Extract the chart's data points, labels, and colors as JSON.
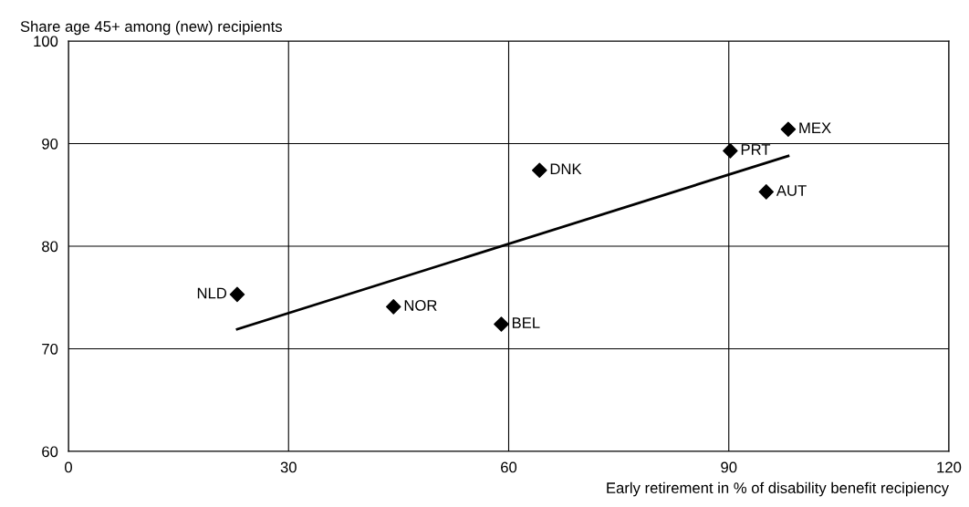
{
  "chart_data": {
    "type": "scatter",
    "xlabel": "Early retirement in % of disability benefit recipiency",
    "ylabel": "Share age 45+ among (new) recipients",
    "xlim": [
      0,
      120
    ],
    "ylim": [
      60,
      100
    ],
    "xticks": [
      0,
      30,
      60,
      90,
      120
    ],
    "yticks": [
      60,
      70,
      80,
      90,
      100
    ],
    "grid": true,
    "series": [
      {
        "marker": "diamond",
        "color": "#000000",
        "x": [
          23.0,
          44.3,
          59.0,
          64.2,
          90.2,
          95.1,
          98.1
        ],
        "values": [
          75.3,
          74.1,
          72.4,
          87.4,
          89.3,
          85.3,
          91.4
        ]
      },
      {
        "type": "line",
        "marker": "none",
        "color": "#000000",
        "x": [
          23.0,
          98.1
        ],
        "values": [
          71.9,
          88.8
        ]
      }
    ],
    "annotations": [
      {
        "text": "NLD",
        "x": 23.0,
        "y": 75.3
      },
      {
        "text": "NOR",
        "x": 44.3,
        "y": 74.1
      },
      {
        "text": "BEL",
        "x": 59.0,
        "y": 72.4
      },
      {
        "text": "DNK",
        "x": 64.2,
        "y": 87.4
      },
      {
        "text": "PRT",
        "x": 90.2,
        "y": 89.3
      },
      {
        "text": "AUT",
        "x": 95.1,
        "y": 85.3
      },
      {
        "text": "MEX",
        "x": 98.1,
        "y": 91.4
      }
    ]
  }
}
